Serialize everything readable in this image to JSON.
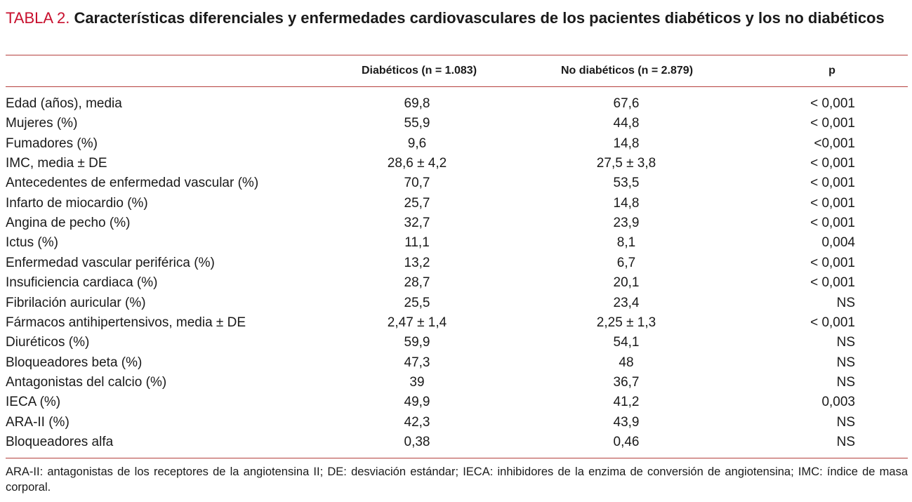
{
  "header": {
    "label": "TABLA 2.",
    "title": "Características diferenciales y enfermedades cardiovasculares de los pacientes diabéticos y los no diabéticos"
  },
  "table": {
    "columns": [
      "Diabéticos (n = 1.083)",
      "No diabéticos (n = 2.879)",
      "p"
    ],
    "rows": [
      [
        "Edad (años), media",
        "69,8",
        "67,6",
        "< 0,001"
      ],
      [
        "Mujeres (%)",
        "55,9",
        "44,8",
        "< 0,001"
      ],
      [
        "Fumadores (%)",
        "9,6",
        "14,8",
        "<0,001"
      ],
      [
        "IMC, media ± DE",
        "28,6 ± 4,2",
        "27,5 ± 3,8",
        "< 0,001"
      ],
      [
        "Antecedentes de enfermedad vascular (%)",
        "70,7",
        "53,5",
        "< 0,001"
      ],
      [
        "Infarto de miocardio (%)",
        "25,7",
        "14,8",
        "< 0,001"
      ],
      [
        "Angina de pecho (%)",
        "32,7",
        "23,9",
        "< 0,001"
      ],
      [
        "Ictus (%)",
        "11,1",
        "8,1",
        "0,004"
      ],
      [
        "Enfermedad vascular periférica (%)",
        "13,2",
        "6,7",
        "< 0,001"
      ],
      [
        "Insuficiencia cardiaca (%)",
        "28,7",
        "20,1",
        "< 0,001"
      ],
      [
        "Fibrilación auricular (%)",
        "25,5",
        "23,4",
        "NS"
      ],
      [
        "Fármacos antihipertensivos, media ± DE",
        "2,47 ± 1,4",
        "2,25 ± 1,3",
        "< 0,001"
      ],
      [
        "Diuréticos (%)",
        "59,9",
        "54,1",
        "NS"
      ],
      [
        "Bloqueadores beta (%)",
        "47,3",
        "48",
        "NS"
      ],
      [
        "Antagonistas del calcio (%)",
        "39",
        "36,7",
        "NS"
      ],
      [
        "IECA (%)",
        "49,9",
        "41,2",
        "0,003"
      ],
      [
        "ARA-II (%)",
        "42,3",
        "43,9",
        "NS"
      ],
      [
        "Bloqueadores alfa",
        "0,38",
        "0,46",
        "NS"
      ]
    ]
  },
  "footnote": "ARA-II: antagonistas de los receptores de la angiotensina II; DE: desviación estándar; IECA: inhibidores de la enzima de conversión de angiotensina; IMC: índice de masa corporal."
}
